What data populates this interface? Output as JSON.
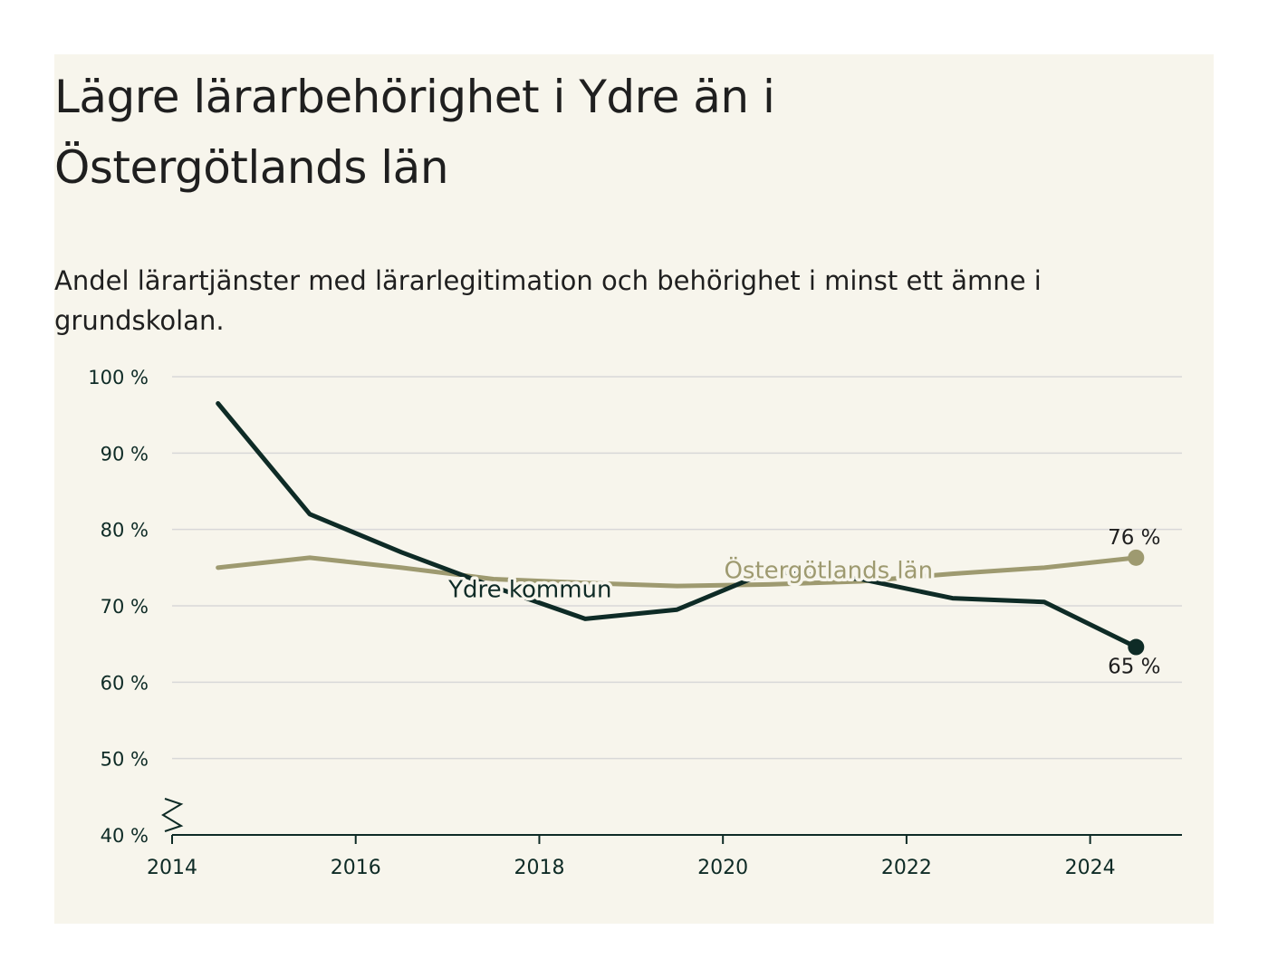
{
  "title": "Lägre lärarbehörighet i Ydre än i Östergötlands län",
  "subtitle": "Andel lärartjänster med lärarlegitimation och behörighet i minst ett ämne i grundskolan.",
  "colors": {
    "background": "#f7f5ec",
    "ydre": "#0e2b26",
    "lan": "#9e9a70",
    "grid": "#d8d8d8",
    "text": "#0e2b26"
  },
  "chart_data": {
    "type": "line",
    "title": "Lägre lärarbehörighet i Ydre än i Östergötlands län",
    "subtitle": "Andel lärartjänster med lärarlegitimation och behörighet i minst ett ämne i grundskolan.",
    "xlabel": "",
    "ylabel": "",
    "xlim": [
      2014,
      2025
    ],
    "ylim": [
      40,
      100
    ],
    "x_ticks": [
      2014,
      2016,
      2018,
      2020,
      2022,
      2024
    ],
    "x_tick_labels": [
      "2014",
      "2016",
      "2018",
      "2020",
      "2022",
      "2024"
    ],
    "y_ticks": [
      40,
      50,
      60,
      70,
      80,
      90,
      100
    ],
    "y_tick_labels": [
      "40 %",
      "50 %",
      "60 %",
      "70 %",
      "80 %",
      "90 %",
      "100 %"
    ],
    "grid": true,
    "axis_break": true,
    "series": [
      {
        "name": "Ydre kommun",
        "color": "#0e2b26",
        "x": [
          2014.5,
          2015.5,
          2016.5,
          2017.5,
          2018.5,
          2019.5,
          2020.5,
          2021.5,
          2022.5,
          2023.5,
          2024.5
        ],
        "values": [
          96.5,
          82,
          77,
          72.5,
          68.3,
          69.5,
          74.5,
          73.5,
          71,
          70.5,
          64.6
        ],
        "end_label": "65 %"
      },
      {
        "name": "Östergötlands län",
        "color": "#9e9a70",
        "x": [
          2014.5,
          2015.5,
          2016.5,
          2017.5,
          2018.5,
          2019.5,
          2020.5,
          2021.5,
          2022.5,
          2023.5,
          2024.5
        ],
        "values": [
          75,
          76.3,
          75,
          73.5,
          73,
          72.6,
          72.8,
          73.2,
          74.2,
          75,
          76.3
        ],
        "end_label": "76 %"
      }
    ]
  }
}
